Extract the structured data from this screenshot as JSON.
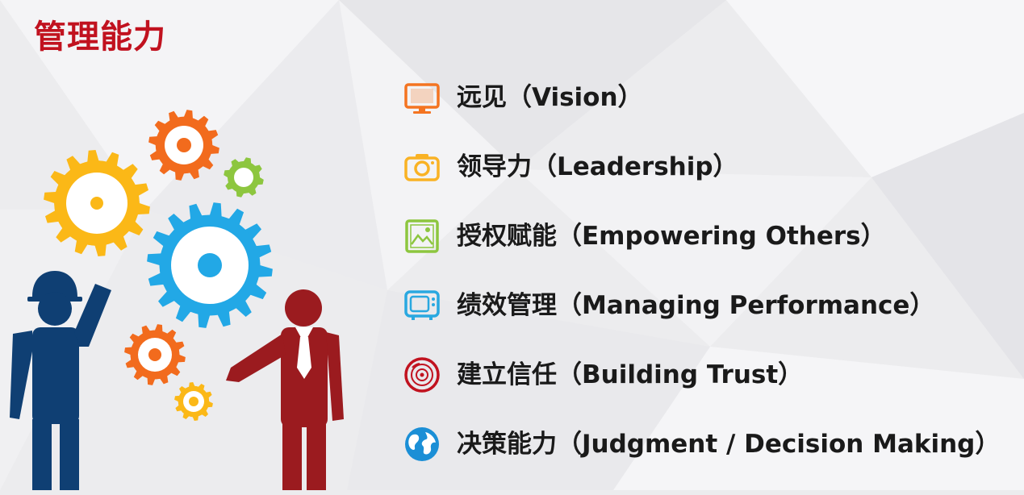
{
  "slide": {
    "title": "管理能力",
    "items": [
      {
        "label": "远见（Vision）",
        "icon": "monitor-icon",
        "color": "#f47421"
      },
      {
        "label": "领导力（Leadership）",
        "icon": "camera-icon",
        "color": "#f9b224"
      },
      {
        "label": "授权赋能（Empowering Others）",
        "icon": "picture-icon",
        "color": "#8dc63f"
      },
      {
        "label": "绩效管理（Managing Performance）",
        "icon": "tv-icon",
        "color": "#29a8e0"
      },
      {
        "label": "建立信任（Building Trust）",
        "icon": "vinyl-record-icon",
        "color": "#c1121f"
      },
      {
        "label": "决策能力（Judgment / Decision Making）",
        "icon": "globe-icon",
        "color": "#1b8fd6"
      }
    ]
  },
  "colors": {
    "title": "#c1121f",
    "gear_orange": "#f26b1d",
    "gear_yellow": "#fbb817",
    "gear_blue": "#22a8e6",
    "gear_green": "#8dc63f",
    "person_left": "#0f3f73",
    "person_right": "#9b1b1f"
  }
}
